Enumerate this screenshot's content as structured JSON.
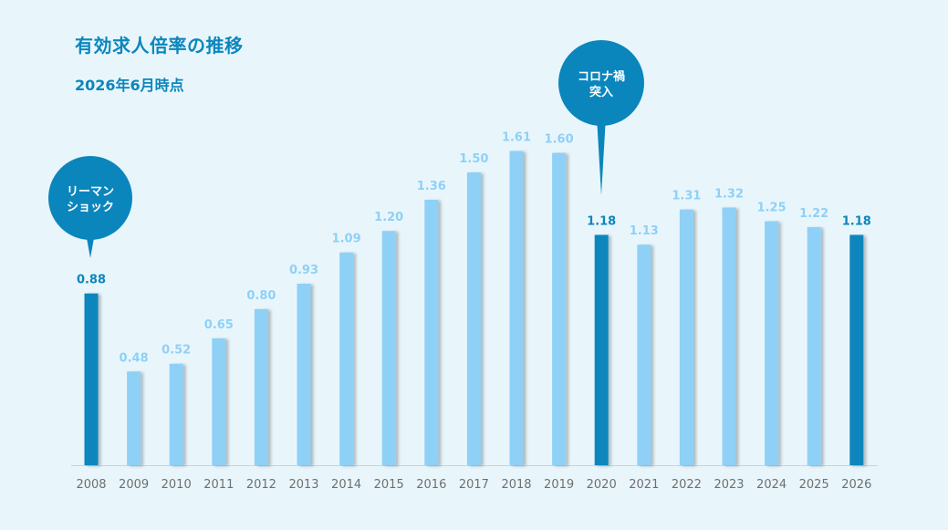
{
  "title": "有効求人倍率の推移",
  "subtitle": "2026年6月時点",
  "colors": {
    "background": "#e8f6fc",
    "bar_normal": "#8fd0f7",
    "bar_highlight": "#0b86bd",
    "label_normal": "#8fd0f7",
    "label_highlight": "#0b86bd",
    "callout": "#0b86bd"
  },
  "chart_data": {
    "type": "bar",
    "title": "有効求人倍率の推移",
    "subtitle": "2026年6月時点",
    "categories": [
      "2008",
      "2009",
      "2010",
      "2011",
      "2012",
      "2013",
      "2014",
      "2015",
      "2016",
      "2017",
      "2018",
      "2019",
      "2020",
      "2021",
      "2022",
      "2023",
      "2024",
      "2025",
      "2026"
    ],
    "values": [
      0.88,
      0.48,
      0.52,
      0.65,
      0.8,
      0.93,
      1.09,
      1.2,
      1.36,
      1.5,
      1.61,
      1.6,
      1.18,
      1.13,
      1.31,
      1.32,
      1.25,
      1.22,
      1.18
    ],
    "value_labels": [
      "0.88",
      "0.48",
      "0.52",
      "0.65",
      "0.80",
      "0.93",
      "1.09",
      "1.20",
      "1.36",
      "1.50",
      "1.61",
      "1.60",
      "1.18",
      "1.13",
      "1.31",
      "1.32",
      "1.25",
      "1.22",
      "1.18"
    ],
    "highlighted": [
      "2008",
      "2020",
      "2026"
    ],
    "ylim": [
      0,
      1.75
    ],
    "grid": false,
    "legend": "none",
    "annotations": [
      {
        "category": "2008",
        "lines": [
          "リーマン",
          "ショック"
        ]
      },
      {
        "category": "2020",
        "lines": [
          "コロナ禍",
          "突入"
        ]
      }
    ]
  }
}
